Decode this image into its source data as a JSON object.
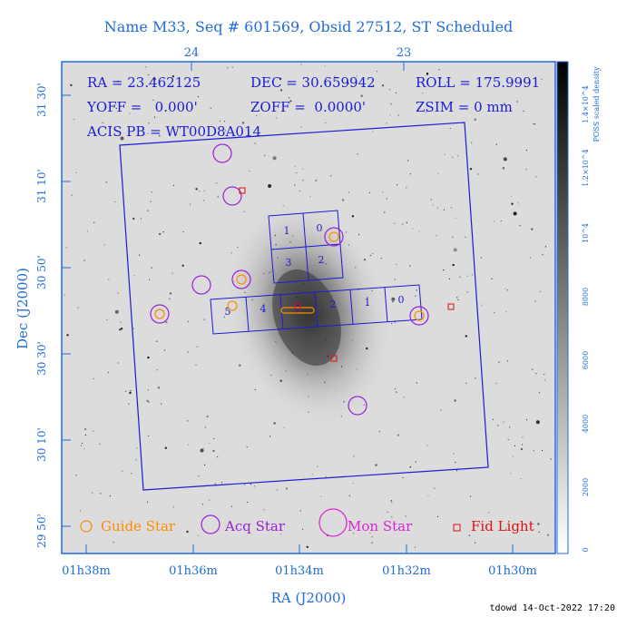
{
  "title": "Name M33, Seq # 601569, Obsid 27512, ST Scheduled",
  "top_ticks": [
    "24",
    "23"
  ],
  "header": {
    "ra": "RA = 23.462125",
    "dec": "DEC = 30.659942",
    "roll": "ROLL = 175.9991",
    "yoff": "YOFF =   0.000'",
    "zoff": "ZOFF =  0.0000'",
    "zsim": "ZSIM = 0 mm",
    "acis": "ACIS PB = WT00D8A014"
  },
  "y_axis": {
    "label": "Dec (J2000)",
    "ticks": [
      "31 30'",
      "31 10'",
      "30 50'",
      "30 30'",
      "30 10'",
      "29 50'"
    ]
  },
  "x_axis": {
    "label": "RA (J2000)",
    "ticks": [
      "01h38m",
      "01h36m",
      "01h34m",
      "01h32m",
      "01h30m"
    ]
  },
  "colorbar": {
    "title": "POSS scaled density",
    "ticks": [
      "0",
      "2000",
      "4000",
      "6000",
      "8000",
      "10^4",
      "1.2×10^4",
      "1.4×10^4"
    ]
  },
  "ccd_labels": {
    "top": [
      "1",
      "0",
      "3",
      "2"
    ],
    "bottom": [
      "5",
      "4",
      "3",
      "2",
      "1",
      "0"
    ]
  },
  "legend": {
    "guide": "Guide Star",
    "acq": "Acq Star",
    "mon": "Mon Star",
    "fid": "Fid Light"
  },
  "footer": "tdowd 14-Oct-2022 17:20",
  "colors": {
    "axis": "#1f6bd8",
    "guide": "#ff8c00",
    "acq": "#9a1fd8",
    "mon": "#e01fd8",
    "fid": "#e01010",
    "field": "#1a1ad8"
  }
}
